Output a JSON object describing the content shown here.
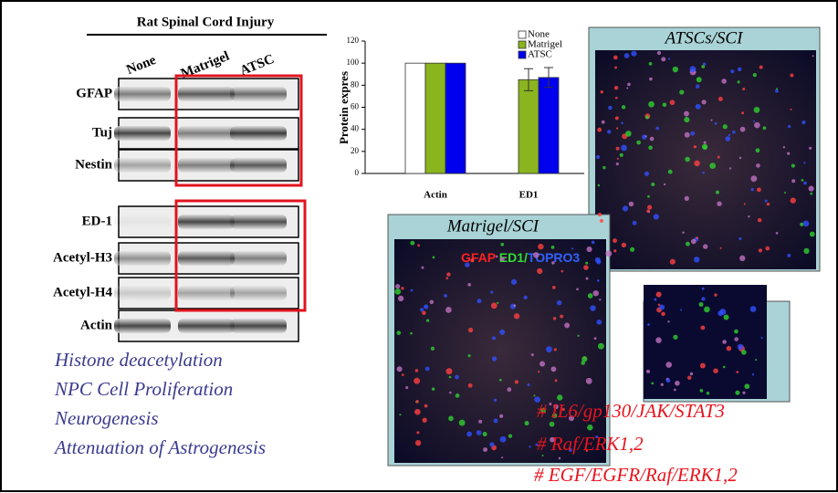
{
  "blot": {
    "title": "Rat Spinal Cord Injury",
    "columns": [
      "None",
      "Matrigel",
      "ATSC"
    ],
    "rows": [
      "GFAP",
      "Tuj",
      "Nestin",
      "ED-1",
      "Acetyl-H3",
      "Acetyl-H4",
      "Actin"
    ]
  },
  "findings": [
    "Histone deacetylation",
    "NPC Cell Proliferation",
    "Neurogenesis",
    "Attenuation of Astrogenesis"
  ],
  "chart_data": {
    "type": "bar",
    "y_label": "Protein expres",
    "categories": [
      "Actin",
      "ED1"
    ],
    "series": [
      {
        "name": "None",
        "color": "#ffffff",
        "values": [
          100,
          null
        ],
        "errors": [
          null,
          null
        ]
      },
      {
        "name": "Matrigel",
        "color": "#8ab51e",
        "values": [
          100,
          85
        ],
        "errors": [
          null,
          10
        ]
      },
      {
        "name": "ATSC",
        "color": "#0000ee",
        "values": [
          100,
          87
        ],
        "errors": [
          null,
          9
        ]
      }
    ],
    "ylim": [
      0,
      120
    ],
    "yticks": [
      0,
      20,
      40,
      60,
      80,
      100,
      120
    ]
  },
  "panels": {
    "atsc": "ATSCs/SCI",
    "matrigel": "Matrigel/SCI",
    "stain": [
      "GFAP",
      "ED1/",
      "TOPRO3"
    ]
  },
  "pathways": [
    "# IL6/gp130/JAK/STAT3",
    "# Raf/ERK1,2",
    "# EGF/EGFR/Raf/ERK1,2"
  ]
}
